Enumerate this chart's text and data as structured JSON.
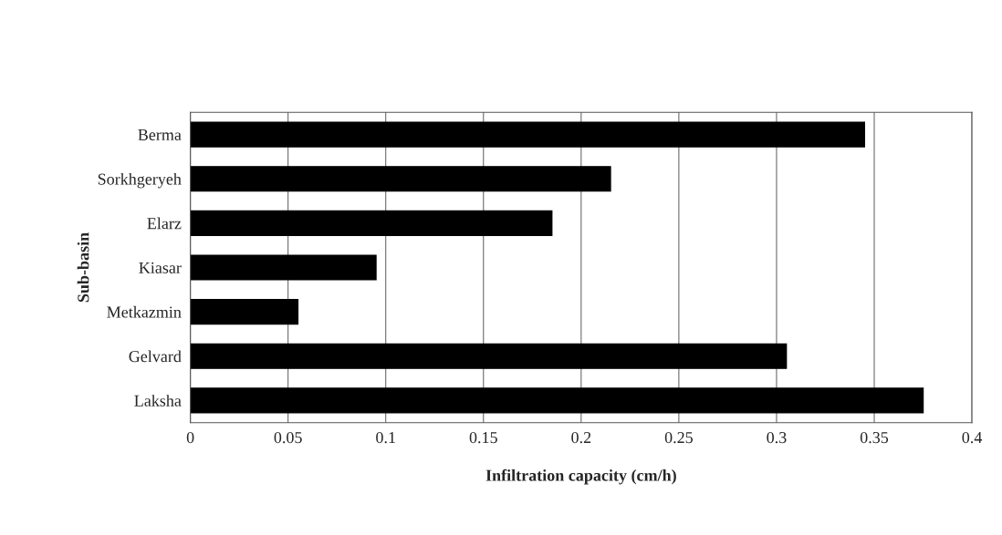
{
  "chart_data": {
    "type": "bar",
    "orientation": "horizontal",
    "xlabel": "Infiltration capacity (cm/h)",
    "ylabel": "Sub-basin",
    "categories": [
      "Berma",
      "Sorkhgeryeh",
      "Elarz",
      "Kiasar",
      "Metkazmin",
      "Gelvard",
      "Laksha"
    ],
    "values": [
      0.345,
      0.215,
      0.185,
      0.095,
      0.055,
      0.305,
      0.375
    ],
    "color": "#000000",
    "xlim": [
      0,
      0.4
    ],
    "xticks": [
      0,
      0.05,
      0.1,
      0.15,
      0.2,
      0.25,
      0.3,
      0.35,
      0.4
    ],
    "grid": "x"
  }
}
